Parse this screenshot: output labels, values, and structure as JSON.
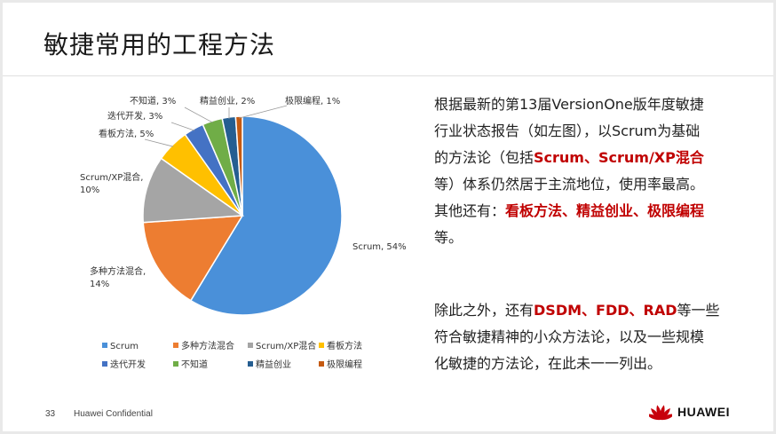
{
  "slide": {
    "title": "敏捷常用的工程方法",
    "page_number": "33",
    "confidential": "Huawei Confidential",
    "brand": "HUAWEI",
    "brand_color": "#c7000b",
    "highlight_color": "#c00000"
  },
  "text": {
    "p1": [
      "根据最新的第13届VersionOne版年度敏捷",
      "行业状态报告（如左图），以Scrum为基础",
      "的方法论（包括",
      "Scrum、Scrum/XP混合",
      "等）体系仍然居于主流地位，使用率最高。",
      "其他还有：",
      "看板方法、精益创业、极限编程",
      "等。"
    ],
    "p2": [
      "除此之外，还有",
      "DSDM、FDD、RAD",
      "等一些",
      "符合敏捷精神的小众方法论，以及一些规模",
      "化敏捷的方法论，在此未一一列出。"
    ]
  },
  "chart_data": {
    "type": "pie",
    "title": "",
    "categories": [
      "Scrum",
      "多种方法混合",
      "Scrum/XP混合",
      "看板方法",
      "迭代开发",
      "不知道",
      "精益创业",
      "极限编程"
    ],
    "values": [
      54,
      14,
      10,
      5,
      3,
      3,
      2,
      1
    ],
    "colors": [
      "#4a90d9",
      "#ed7d31",
      "#a5a5a5",
      "#ffc000",
      "#4472c4",
      "#70ad47",
      "#255e91",
      "#c55a11"
    ],
    "data_labels": [
      "Scrum, 54%",
      "多种方法混合,|14%",
      "Scrum/XP混合,|10%",
      "看板方法, 5%",
      "迭代开发, 3%",
      "不知道, 3%",
      "精益创业, 2%",
      "极限编程, 1%"
    ],
    "legend_position": "bottom"
  }
}
